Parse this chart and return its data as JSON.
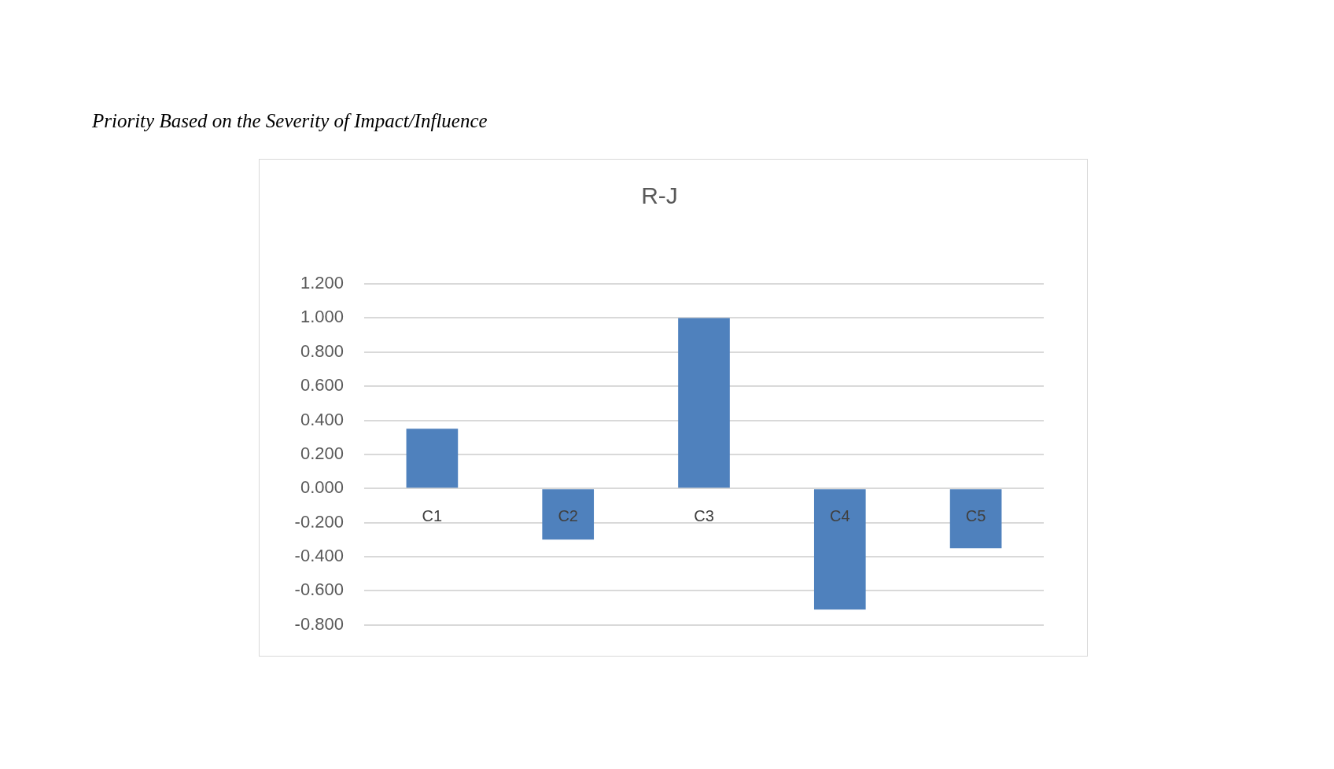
{
  "chart_data": {
    "type": "bar",
    "title": "R-J",
    "annotations": [
      "Priority Based on the Severity of Impact/Influence"
    ],
    "categories": [
      "C1",
      "C2",
      "C3",
      "C4",
      "C5"
    ],
    "values": [
      0.35,
      -0.3,
      1.0,
      -0.71,
      -0.35
    ],
    "color": "#4f81bd",
    "ylim": [
      -0.8,
      1.2
    ],
    "yticks": [
      {
        "value": -0.8,
        "label": "-0.800"
      },
      {
        "value": -0.6,
        "label": "-0.600"
      },
      {
        "value": -0.4,
        "label": "-0.400"
      },
      {
        "value": -0.2,
        "label": "-0.200"
      },
      {
        "value": 0,
        "label": "0.000"
      },
      {
        "value": 0.2,
        "label": "0.200"
      },
      {
        "value": 0.4,
        "label": "0.400"
      },
      {
        "value": 0.6,
        "label": "0.600"
      },
      {
        "value": 0.8,
        "label": "0.800"
      },
      {
        "value": 1.0,
        "label": "1.000"
      },
      {
        "value": 1.2,
        "label": "1.200"
      }
    ],
    "grid": "y"
  }
}
